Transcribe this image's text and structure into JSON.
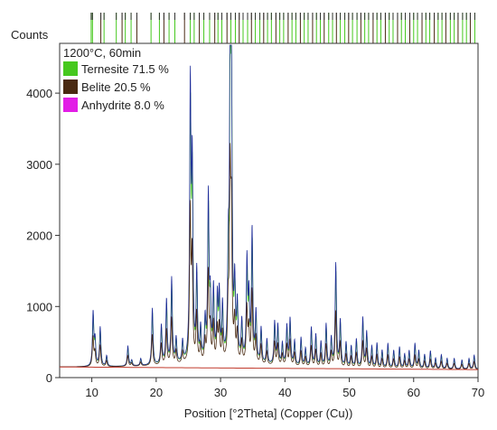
{
  "chart_data": {
    "type": "line",
    "title": "1200°C,  60min",
    "xlabel": "Position [°2Theta] (Copper (Cu))",
    "ylabel": "Counts",
    "xlim": [
      5,
      70
    ],
    "ylim": [
      0,
      4700
    ],
    "x_ticks": [
      10,
      20,
      30,
      40,
      50,
      60,
      70
    ],
    "y_ticks": [
      0,
      1000,
      2000,
      3000,
      4000
    ],
    "legend_placement": "top-left",
    "legend": [
      {
        "label": "Ternesite 71.5 %",
        "color": "#46c81e"
      },
      {
        "label": "Belite 20.5 %",
        "color": "#4a2a12"
      },
      {
        "label": "Anhydrite 8.0 %",
        "color": "#e21ee6"
      }
    ],
    "background_level": 150,
    "peaks": [
      [
        10.2,
        900
      ],
      [
        10.5,
        500
      ],
      [
        11.3,
        700
      ],
      [
        12.3,
        300
      ],
      [
        15.6,
        430
      ],
      [
        16.2,
        230
      ],
      [
        17.6,
        250
      ],
      [
        19.4,
        950
      ],
      [
        20.8,
        700
      ],
      [
        21.6,
        1050
      ],
      [
        22.4,
        1350
      ],
      [
        23.1,
        500
      ],
      [
        24.1,
        450
      ],
      [
        25.3,
        3950
      ],
      [
        25.6,
        2800
      ],
      [
        26.3,
        1400
      ],
      [
        26.9,
        600
      ],
      [
        27.6,
        700
      ],
      [
        28.1,
        2450
      ],
      [
        28.4,
        950
      ],
      [
        28.9,
        1150
      ],
      [
        29.5,
        1000
      ],
      [
        29.8,
        1050
      ],
      [
        30.3,
        900
      ],
      [
        31.2,
        1400
      ],
      [
        31.5,
        4650
      ],
      [
        31.7,
        3500
      ],
      [
        32.2,
        1150
      ],
      [
        32.6,
        900
      ],
      [
        33.3,
        700
      ],
      [
        34.1,
        1550
      ],
      [
        34.4,
        1000
      ],
      [
        34.9,
        2000
      ],
      [
        35.5,
        850
      ],
      [
        36.3,
        650
      ],
      [
        37.2,
        500
      ],
      [
        38.4,
        750
      ],
      [
        38.9,
        700
      ],
      [
        39.6,
        450
      ],
      [
        40.3,
        700
      ],
      [
        40.8,
        800
      ],
      [
        41.5,
        500
      ],
      [
        42.5,
        550
      ],
      [
        43.2,
        400
      ],
      [
        44.1,
        700
      ],
      [
        44.8,
        600
      ],
      [
        45.6,
        500
      ],
      [
        46.4,
        750
      ],
      [
        47.2,
        550
      ],
      [
        47.9,
        1600
      ],
      [
        48.6,
        800
      ],
      [
        49.5,
        500
      ],
      [
        50.3,
        450
      ],
      [
        51.1,
        550
      ],
      [
        52.1,
        850
      ],
      [
        52.7,
        650
      ],
      [
        53.5,
        450
      ],
      [
        54.3,
        500
      ],
      [
        55.1,
        400
      ],
      [
        56.0,
        500
      ],
      [
        56.9,
        400
      ],
      [
        57.8,
        450
      ],
      [
        58.6,
        350
      ],
      [
        59.3,
        400
      ],
      [
        60.2,
        500
      ],
      [
        60.8,
        400
      ],
      [
        61.7,
        350
      ],
      [
        62.6,
        400
      ],
      [
        63.4,
        300
      ],
      [
        64.3,
        350
      ],
      [
        65.2,
        300
      ],
      [
        66.3,
        300
      ],
      [
        67.5,
        280
      ],
      [
        68.6,
        300
      ],
      [
        69.4,
        350
      ]
    ],
    "reference_line_positions": [
      9.9,
      10.1,
      11.4,
      11.9,
      13.8,
      14.7,
      15.2,
      16.1,
      17.0,
      19.2,
      20.5,
      21.2,
      22.0,
      22.9,
      24.4,
      25.3,
      25.9,
      26.7,
      27.4,
      28.3,
      29.1,
      29.6,
      30.2,
      31.0,
      31.6,
      32.3,
      32.9,
      33.5,
      34.2,
      34.8,
      35.4,
      36.1,
      36.7,
      37.3,
      37.9,
      38.6,
      39.2,
      39.8,
      40.5,
      41.1,
      41.7,
      42.4,
      43.0,
      43.6,
      44.3,
      44.9,
      45.5,
      46.1,
      46.8,
      47.4,
      48.0,
      48.6,
      49.3,
      49.9,
      50.5,
      51.2,
      51.8,
      52.4,
      53.0,
      53.7,
      54.3,
      54.9,
      55.6,
      56.2,
      56.8,
      57.5,
      58.1,
      58.7,
      59.4,
      60.0,
      60.6,
      61.3,
      61.9,
      62.5,
      63.2,
      63.8,
      64.4,
      65.0,
      65.7,
      66.3,
      66.9,
      67.6,
      68.2,
      68.8,
      69.5
    ]
  }
}
